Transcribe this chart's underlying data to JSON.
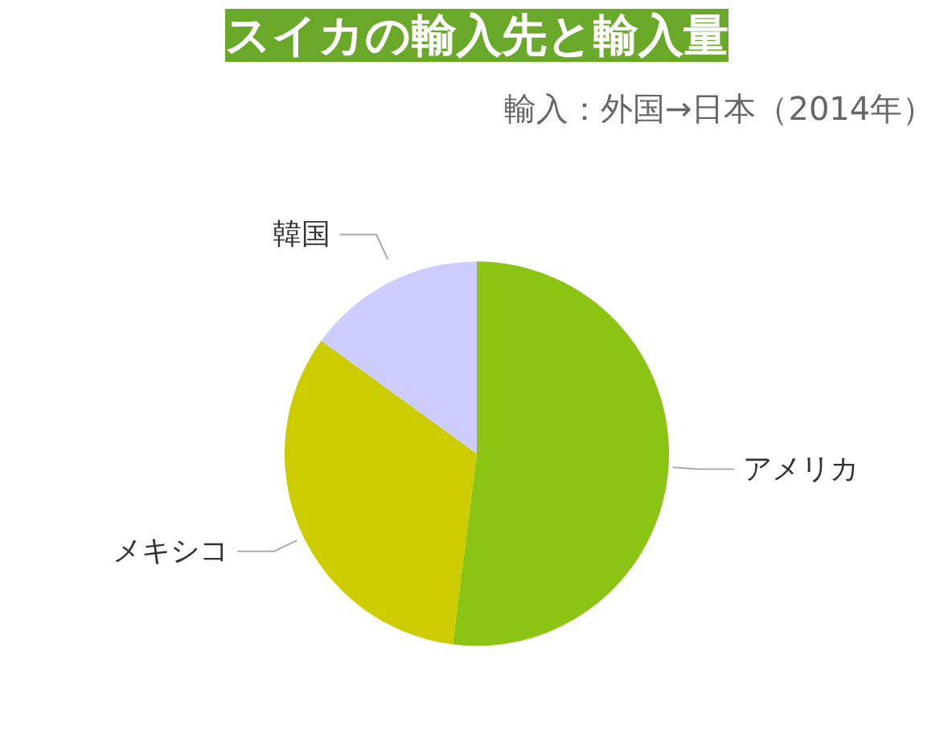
{
  "chart_data": {
    "type": "pie",
    "title": "スイカの輸入先と輸入量",
    "subtitle": "輸入：外国→日本（2014年）",
    "categories": [
      "アメリカ",
      "メキシコ",
      "韓国"
    ],
    "values": [
      52,
      33,
      15
    ],
    "colors": [
      "#8cc414",
      "#cccc00",
      "#ccccff"
    ]
  }
}
